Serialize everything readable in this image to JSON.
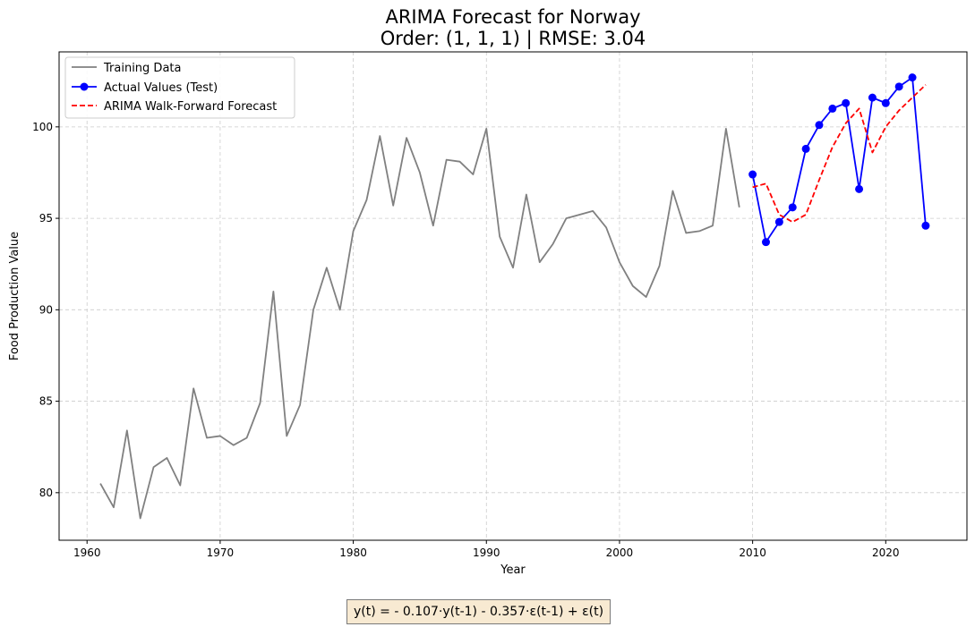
{
  "chart_data": {
    "type": "line",
    "title_lines": [
      "ARIMA Forecast for Norway",
      "Order: (1, 1, 1) | RMSE: 3.04"
    ],
    "xlabel": "Year",
    "ylabel": "Food Production Value",
    "xlim": [
      1957.9,
      2026.1
    ],
    "ylim": [
      77.4,
      104.1
    ],
    "xticks": [
      1960,
      1970,
      1980,
      1990,
      2000,
      2010,
      2020
    ],
    "yticks": [
      80,
      85,
      90,
      95,
      100
    ],
    "grid": true,
    "legend_position": "top-left",
    "series": [
      {
        "name": "Training Data",
        "color": "#808080",
        "style": "solid",
        "marker": "none",
        "x": [
          1961,
          1962,
          1963,
          1964,
          1965,
          1966,
          1967,
          1968,
          1969,
          1970,
          1971,
          1972,
          1973,
          1974,
          1975,
          1976,
          1977,
          1978,
          1979,
          1980,
          1981,
          1982,
          1983,
          1984,
          1985,
          1986,
          1987,
          1988,
          1989,
          1990,
          1991,
          1992,
          1993,
          1994,
          1995,
          1996,
          1997,
          1998,
          1999,
          2000,
          2001,
          2002,
          2003,
          2004,
          2005,
          2006,
          2007,
          2008,
          2009
        ],
        "values": [
          80.5,
          79.2,
          83.4,
          78.6,
          81.4,
          81.9,
          80.4,
          85.7,
          83.0,
          83.1,
          82.6,
          83.0,
          84.9,
          91.0,
          83.1,
          84.8,
          90.0,
          92.3,
          90.0,
          94.3,
          96.0,
          99.5,
          95.7,
          99.4,
          97.5,
          94.6,
          98.2,
          98.1,
          97.4,
          99.9,
          94.0,
          92.3,
          96.3,
          92.6,
          93.6,
          95.0,
          95.2,
          95.4,
          94.5,
          92.6,
          91.3,
          90.7,
          92.4,
          96.5,
          94.2,
          94.3,
          94.6,
          99.9,
          95.6
        ]
      },
      {
        "name": "Actual Values (Test)",
        "color": "#0000ff",
        "style": "solid",
        "marker": "circle",
        "x": [
          2010,
          2011,
          2012,
          2013,
          2014,
          2015,
          2016,
          2017,
          2018,
          2019,
          2020,
          2021,
          2022,
          2023
        ],
        "values": [
          97.4,
          93.7,
          94.8,
          95.6,
          98.8,
          100.1,
          101.0,
          101.3,
          96.6,
          101.6,
          101.3,
          102.2,
          102.7,
          94.6
        ]
      },
      {
        "name": "ARIMA Walk-Forward Forecast",
        "color": "#ff0000",
        "style": "dashed",
        "marker": "none",
        "x": [
          2010,
          2011,
          2012,
          2013,
          2014,
          2015,
          2016,
          2017,
          2018,
          2019,
          2020,
          2021,
          2022,
          2023
        ],
        "values": [
          96.7,
          96.9,
          95.2,
          94.8,
          95.2,
          97.1,
          98.9,
          100.2,
          101.0,
          98.6,
          100.0,
          100.9,
          101.6,
          102.3
        ]
      }
    ]
  },
  "equation": "y(t) = - 0.107·y(t-1) - 0.357·ε(t-1) + ε(t)"
}
